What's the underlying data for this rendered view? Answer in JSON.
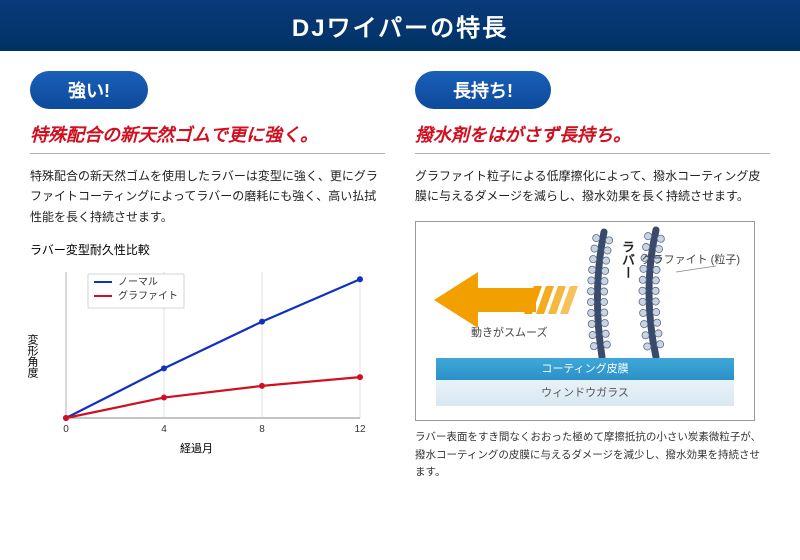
{
  "header": {
    "title": "DJワイパーの特長"
  },
  "left": {
    "pill": "強い!",
    "headline": "特殊配合の新天然ゴムで更に強く。",
    "body": "特殊配合の新天然ゴムを使用したラバーは変型に強く、更にグラファイトコーティングによってラバーの磨耗にも強く、高い払拭性能を長く持続させます。",
    "chart": {
      "title": "ラバー変型耐久性比較",
      "type": "line",
      "xlabel": "経過月",
      "ylabel": "変形角度",
      "x_values": [
        0,
        4,
        8,
        12
      ],
      "xlim": [
        0,
        12
      ],
      "ylim": [
        0,
        100
      ],
      "series": [
        {
          "name": "ノーマル",
          "color": "#1030c0",
          "values": [
            0,
            34,
            66,
            95
          ],
          "line_width": 2.2,
          "marker": "circle",
          "marker_size": 4
        },
        {
          "name": "グラファイト",
          "color": "#d01020",
          "values": [
            0,
            14,
            22,
            28
          ],
          "line_width": 2.2,
          "marker": "circle",
          "marker_size": 4
        }
      ],
      "axis_color": "#888",
      "grid_color": "#ccc",
      "background_color": "#ffffff",
      "legend_position": "top-left-inside",
      "legend_font_size": 10
    }
  },
  "right": {
    "pill": "長持ち!",
    "headline": "撥水剤をはがさず長持ち。",
    "body": "グラファイト粒子による低摩擦化によって、撥水コーティング皮膜に与えるダメージを減らし、撥水効果を長く持続させます。",
    "diagram": {
      "type": "infographic",
      "rubber_label": "ラバー",
      "graphite_label": "グラファイト\n(粒子)",
      "smooth_label": "動きがスムーズ",
      "coating_label": "コーティング皮膜",
      "glass_label": "ウィンドウガラス",
      "arrow_color": "#f2a000",
      "rubber_color": "#3a4a6a",
      "graphite_particle_color": "#c8d4e2",
      "graphite_outline": "#5a6a88",
      "coating_color": "#2b90c8",
      "glass_color": "#e0eef6",
      "border_color": "#999"
    },
    "caption": "ラバー表面をすき間なくおおった極めて摩擦抵抗の小さい炭素微粒子が、撥水コーティングの皮膜に与えるダメージを減少し、撥水効果を持続させます。"
  }
}
